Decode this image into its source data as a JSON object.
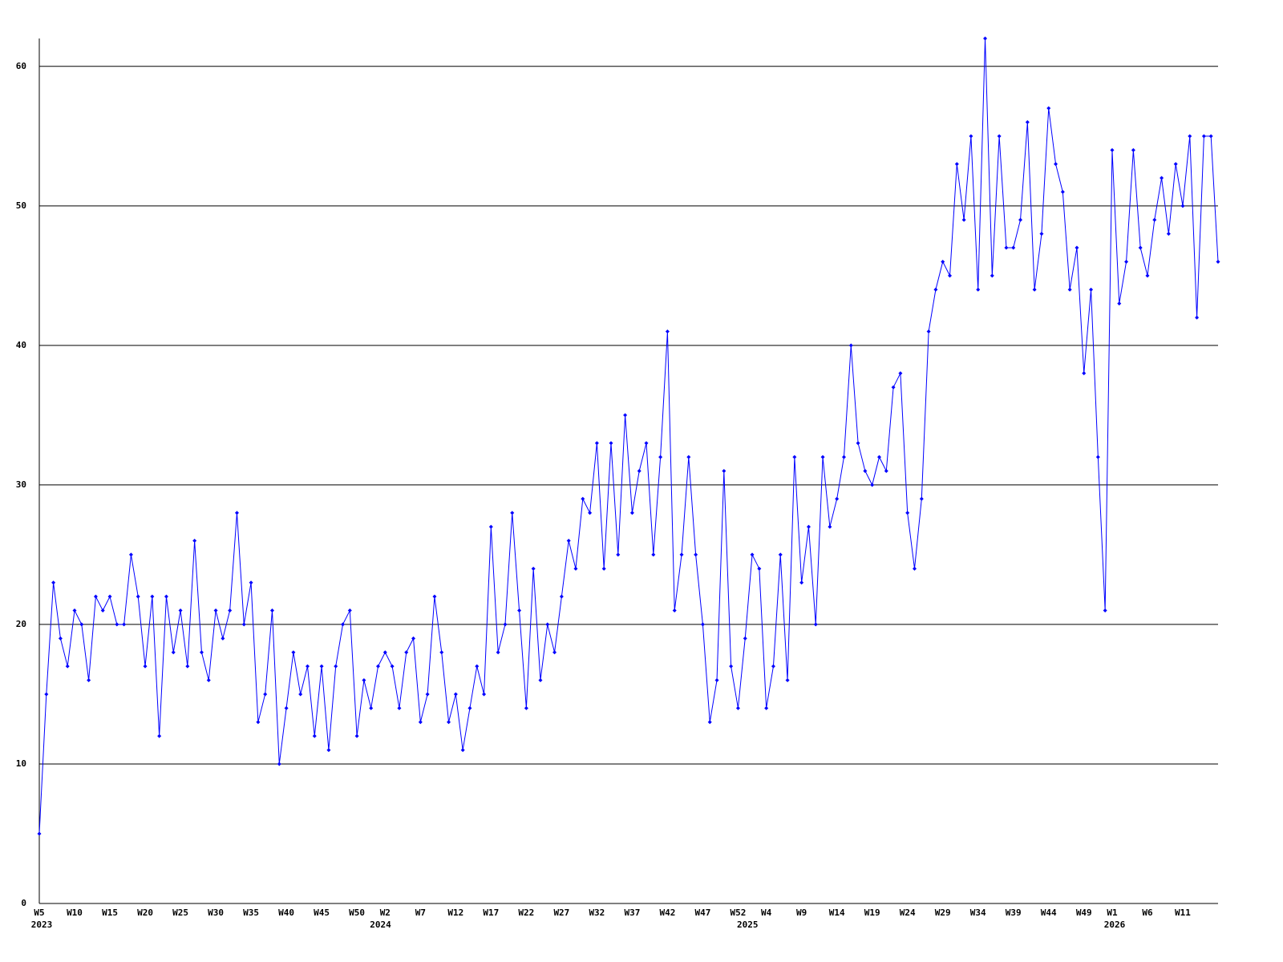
{
  "chart_data": {
    "type": "line",
    "categories": [
      "W5",
      null,
      null,
      null,
      null,
      "W10",
      null,
      null,
      null,
      null,
      "W15",
      null,
      null,
      null,
      null,
      "W20",
      null,
      null,
      null,
      null,
      "W25",
      null,
      null,
      null,
      null,
      "W30",
      null,
      null,
      null,
      null,
      "W35",
      null,
      null,
      null,
      null,
      "W40",
      null,
      null,
      null,
      null,
      "W45",
      null,
      null,
      null,
      null,
      "W50",
      null,
      null,
      null,
      "W2",
      null,
      null,
      null,
      null,
      "W7",
      null,
      null,
      null,
      null,
      "W12",
      null,
      null,
      null,
      null,
      "W17",
      null,
      null,
      null,
      null,
      "W22",
      null,
      null,
      null,
      null,
      "W27",
      null,
      null,
      null,
      null,
      "W32",
      null,
      null,
      null,
      null,
      "W37",
      null,
      null,
      null,
      null,
      "W42",
      null,
      null,
      null,
      null,
      "W47",
      null,
      null,
      null,
      null,
      "W52",
      null,
      null,
      null,
      "W4",
      null,
      null,
      null,
      null,
      "W9",
      null,
      null,
      null,
      null,
      "W14",
      null,
      null,
      null,
      null,
      "W19",
      null,
      null,
      null,
      null,
      "W24",
      null,
      null,
      null,
      null,
      "W29",
      null,
      null,
      null,
      null,
      "W34",
      null,
      null,
      null,
      null,
      "W39",
      null,
      null,
      null,
      null,
      "W44",
      null,
      null,
      null,
      null,
      "W49",
      null,
      null,
      null,
      "W1",
      null,
      null,
      null,
      null,
      "W6",
      null,
      null,
      null,
      null,
      "W11",
      null,
      null,
      null,
      null,
      null
    ],
    "year_labels": [
      "2023",
      null,
      null,
      null,
      null,
      null,
      null,
      null,
      null,
      null,
      null,
      null,
      null,
      null,
      null,
      null,
      null,
      null,
      null,
      null,
      null,
      null,
      null,
      null,
      null,
      null,
      null,
      null,
      null,
      null,
      null,
      null,
      null,
      null,
      null,
      null,
      null,
      null,
      null,
      null,
      null,
      null,
      null,
      null,
      null,
      null,
      null,
      null,
      "2024",
      null,
      null,
      null,
      null,
      null,
      null,
      null,
      null,
      null,
      null,
      null,
      null,
      null,
      null,
      null,
      null,
      null,
      null,
      null,
      null,
      null,
      null,
      null,
      null,
      null,
      null,
      null,
      null,
      null,
      null,
      null,
      null,
      null,
      null,
      null,
      null,
      null,
      null,
      null,
      null,
      null,
      null,
      null,
      null,
      null,
      null,
      null,
      null,
      null,
      null,
      null,
      "2025",
      null,
      null,
      null,
      null,
      null,
      null,
      null,
      null,
      null,
      null,
      null,
      null,
      null,
      null,
      null,
      null,
      null,
      null,
      null,
      null,
      null,
      null,
      null,
      null,
      null,
      null,
      null,
      null,
      null,
      null,
      null,
      null,
      null,
      null,
      null,
      null,
      null,
      null,
      null,
      null,
      null,
      null,
      null,
      null,
      null,
      null,
      null,
      null,
      null,
      null,
      null,
      "2026",
      null,
      null,
      null,
      null,
      null,
      null,
      null,
      null,
      null,
      null,
      null,
      null,
      null,
      null,
      null
    ],
    "series": [
      {
        "color": "#0000ff",
        "values": [
          5,
          15,
          23,
          19,
          17,
          21,
          20,
          16,
          22,
          21,
          22,
          20,
          20,
          25,
          22,
          17,
          22,
          12,
          22,
          18,
          21,
          17,
          26,
          18,
          16,
          21,
          19,
          21,
          28,
          20,
          23,
          13,
          15,
          21,
          10,
          14,
          18,
          15,
          17,
          12,
          17,
          11,
          17,
          20,
          21,
          12,
          16,
          14,
          17,
          18,
          17,
          14,
          18,
          19,
          13,
          15,
          22,
          18,
          13,
          15,
          11,
          14,
          17,
          15,
          27,
          18,
          20,
          28,
          21,
          14,
          24,
          16,
          20,
          18,
          22,
          26,
          24,
          29,
          28,
          33,
          24,
          33,
          25,
          35,
          28,
          31,
          33,
          25,
          32,
          41,
          21,
          25,
          32,
          25,
          20,
          13,
          16,
          31,
          17,
          14,
          19,
          25,
          24,
          14,
          17,
          25,
          16,
          32,
          23,
          27,
          20,
          32,
          27,
          29,
          32,
          40,
          33,
          31,
          30,
          32,
          31,
          37,
          38,
          28,
          24,
          29,
          41,
          44,
          46,
          45,
          53,
          49,
          55,
          44,
          62,
          45,
          55,
          47,
          47,
          49,
          56,
          44,
          48,
          57,
          53,
          51,
          44,
          47,
          38,
          44,
          32,
          21,
          54,
          43,
          46,
          54,
          47,
          45,
          49,
          52,
          48,
          53,
          50,
          55,
          42,
          55,
          55,
          46
        ]
      }
    ],
    "ylim": [
      0,
      62
    ],
    "yticks": [
      0,
      10,
      20,
      30,
      40,
      50,
      60
    ],
    "grid": true
  }
}
